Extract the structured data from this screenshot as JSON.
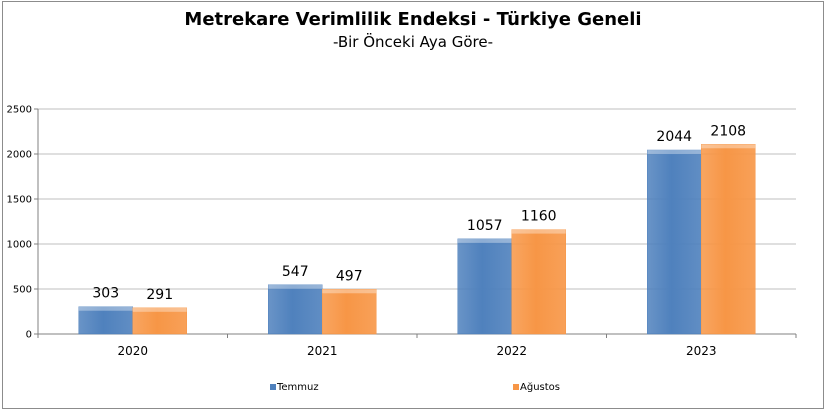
{
  "chart_data": {
    "type": "bar",
    "title": "Metrekare Verimlilik Endeksi - Türkiye Geneli",
    "subtitle": "-Bir Önceki Aya Göre-",
    "categories": [
      "2020",
      "2021",
      "2022",
      "2023"
    ],
    "series": [
      {
        "name": "Temmuz",
        "values": [
          303,
          547,
          1057,
          2044
        ],
        "color": "#4f81bd"
      },
      {
        "name": "Ağustos",
        "values": [
          291,
          497,
          1160,
          2108
        ],
        "color": "#f79646"
      }
    ],
    "ylim": [
      0,
      2500
    ],
    "yticks": [
      0,
      500,
      1000,
      1500,
      2000,
      2500
    ],
    "grid": true,
    "legend_position": "bottom"
  }
}
